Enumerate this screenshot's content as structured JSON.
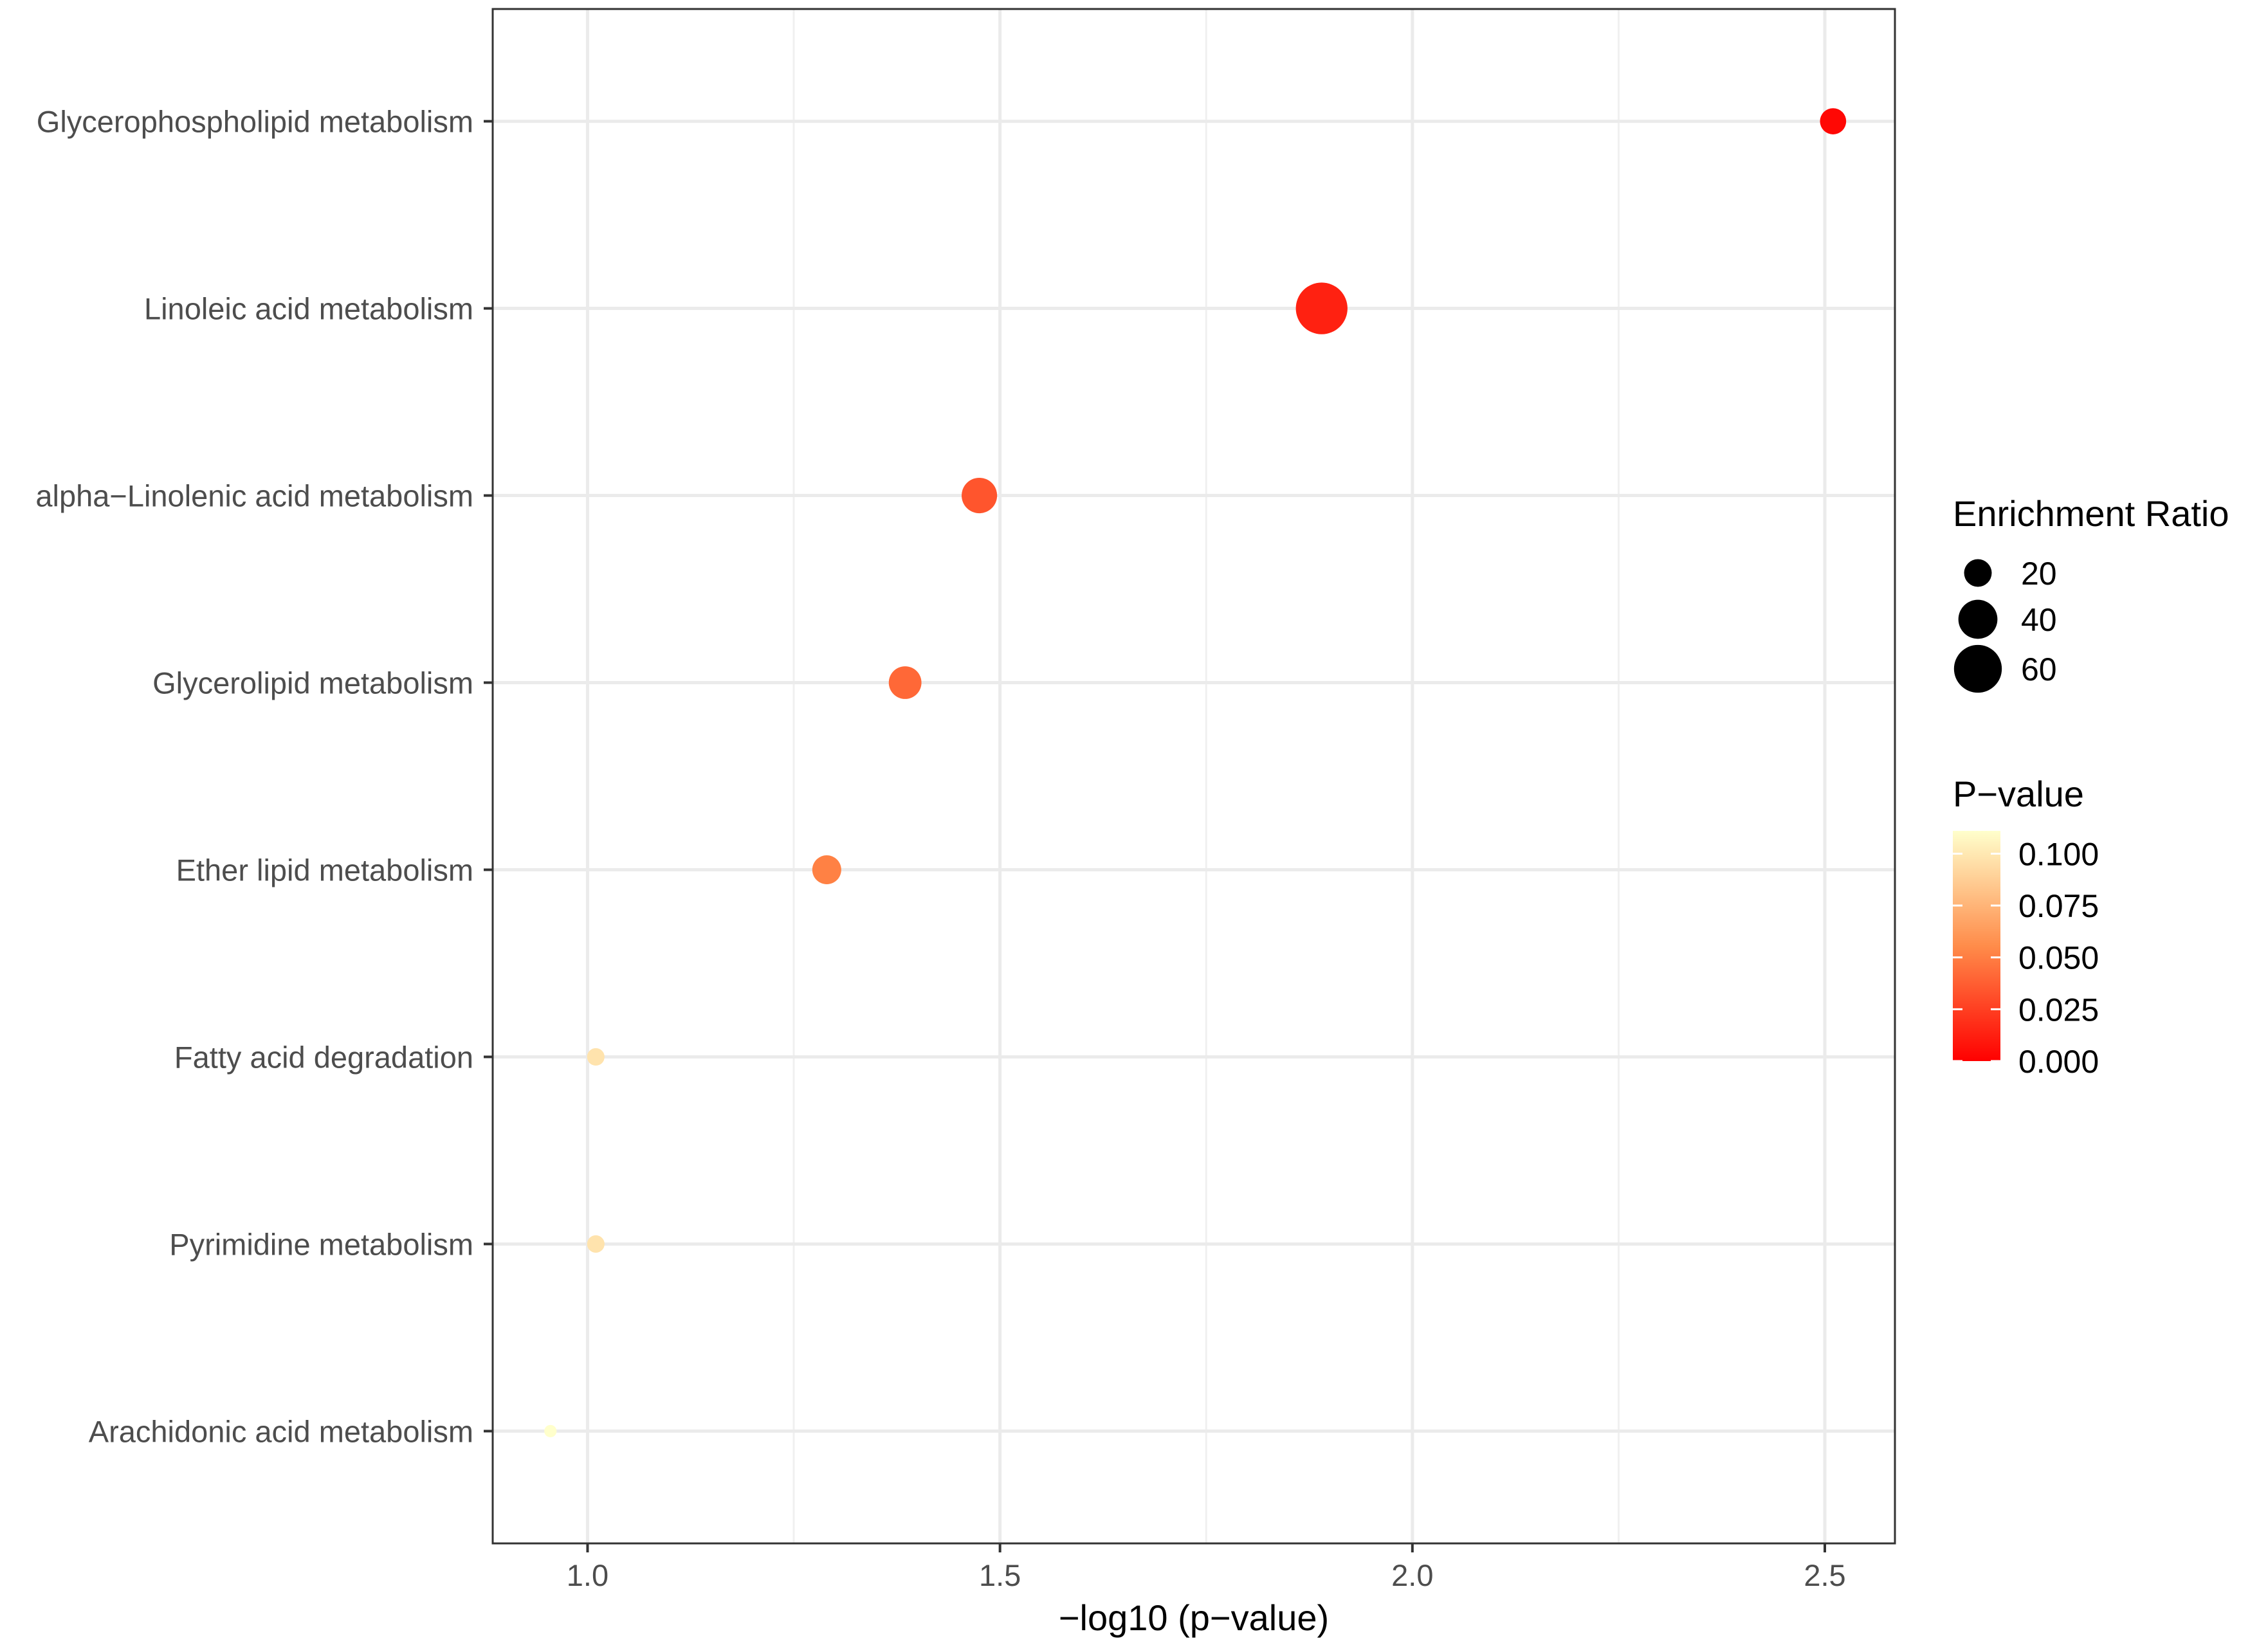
{
  "chart_data": {
    "type": "scatter",
    "xlabel": "−log10 (p−value)",
    "ylabel": "",
    "title": "",
    "xlim": [
      0.885,
      2.585
    ],
    "x_ticks": [
      "1.0",
      "1.5",
      "2.0",
      "2.5"
    ],
    "x_tick_values": [
      1.0,
      1.5,
      2.0,
      2.5
    ],
    "grid": true,
    "legend_position": "right",
    "categories": [
      "Glycerophospholipid metabolism",
      "Linoleic acid metabolism",
      "alpha−Linolenic acid metabolism",
      "Glycerolipid metabolism",
      "Ether lipid metabolism",
      "Fatty acid degradation",
      "Pyrimidine metabolism",
      "Arachidonic acid metabolism"
    ],
    "points": [
      {
        "pathway": "Glycerophospholipid metabolism",
        "x": 2.51,
        "p_value": 0.0031,
        "enrichment_ratio": 18
      },
      {
        "pathway": "Linoleic acid metabolism",
        "x": 1.89,
        "p_value": 0.0129,
        "enrichment_ratio": 70
      },
      {
        "pathway": "alpha−Linolenic acid metabolism",
        "x": 1.475,
        "p_value": 0.0335,
        "enrichment_ratio": 33
      },
      {
        "pathway": "Glycerolipid metabolism",
        "x": 1.385,
        "p_value": 0.0412,
        "enrichment_ratio": 28
      },
      {
        "pathway": "Ether lipid metabolism",
        "x": 1.29,
        "p_value": 0.0513,
        "enrichment_ratio": 22
      },
      {
        "pathway": "Fatty acid degradation",
        "x": 1.01,
        "p_value": 0.0977,
        "enrichment_ratio": 8
      },
      {
        "pathway": "Pyrimidine metabolism",
        "x": 1.01,
        "p_value": 0.0977,
        "enrichment_ratio": 8
      },
      {
        "pathway": "Arachidonic acid metabolism",
        "x": 0.955,
        "p_value": 0.111,
        "enrichment_ratio": 4
      }
    ],
    "size_legend": {
      "title": "Enrichment Ratio",
      "labels": [
        "20",
        "40",
        "60"
      ],
      "values": [
        20,
        40,
        60
      ]
    },
    "color_legend": {
      "title": "P−value",
      "labels": [
        "0.100",
        "0.075",
        "0.050",
        "0.025",
        "0.000"
      ],
      "values": [
        0.1,
        0.075,
        0.05,
        0.025,
        0.0
      ],
      "range": [
        0.0,
        0.111
      ],
      "colors": [
        "#FF0000",
        "#FFFFCC"
      ]
    }
  }
}
